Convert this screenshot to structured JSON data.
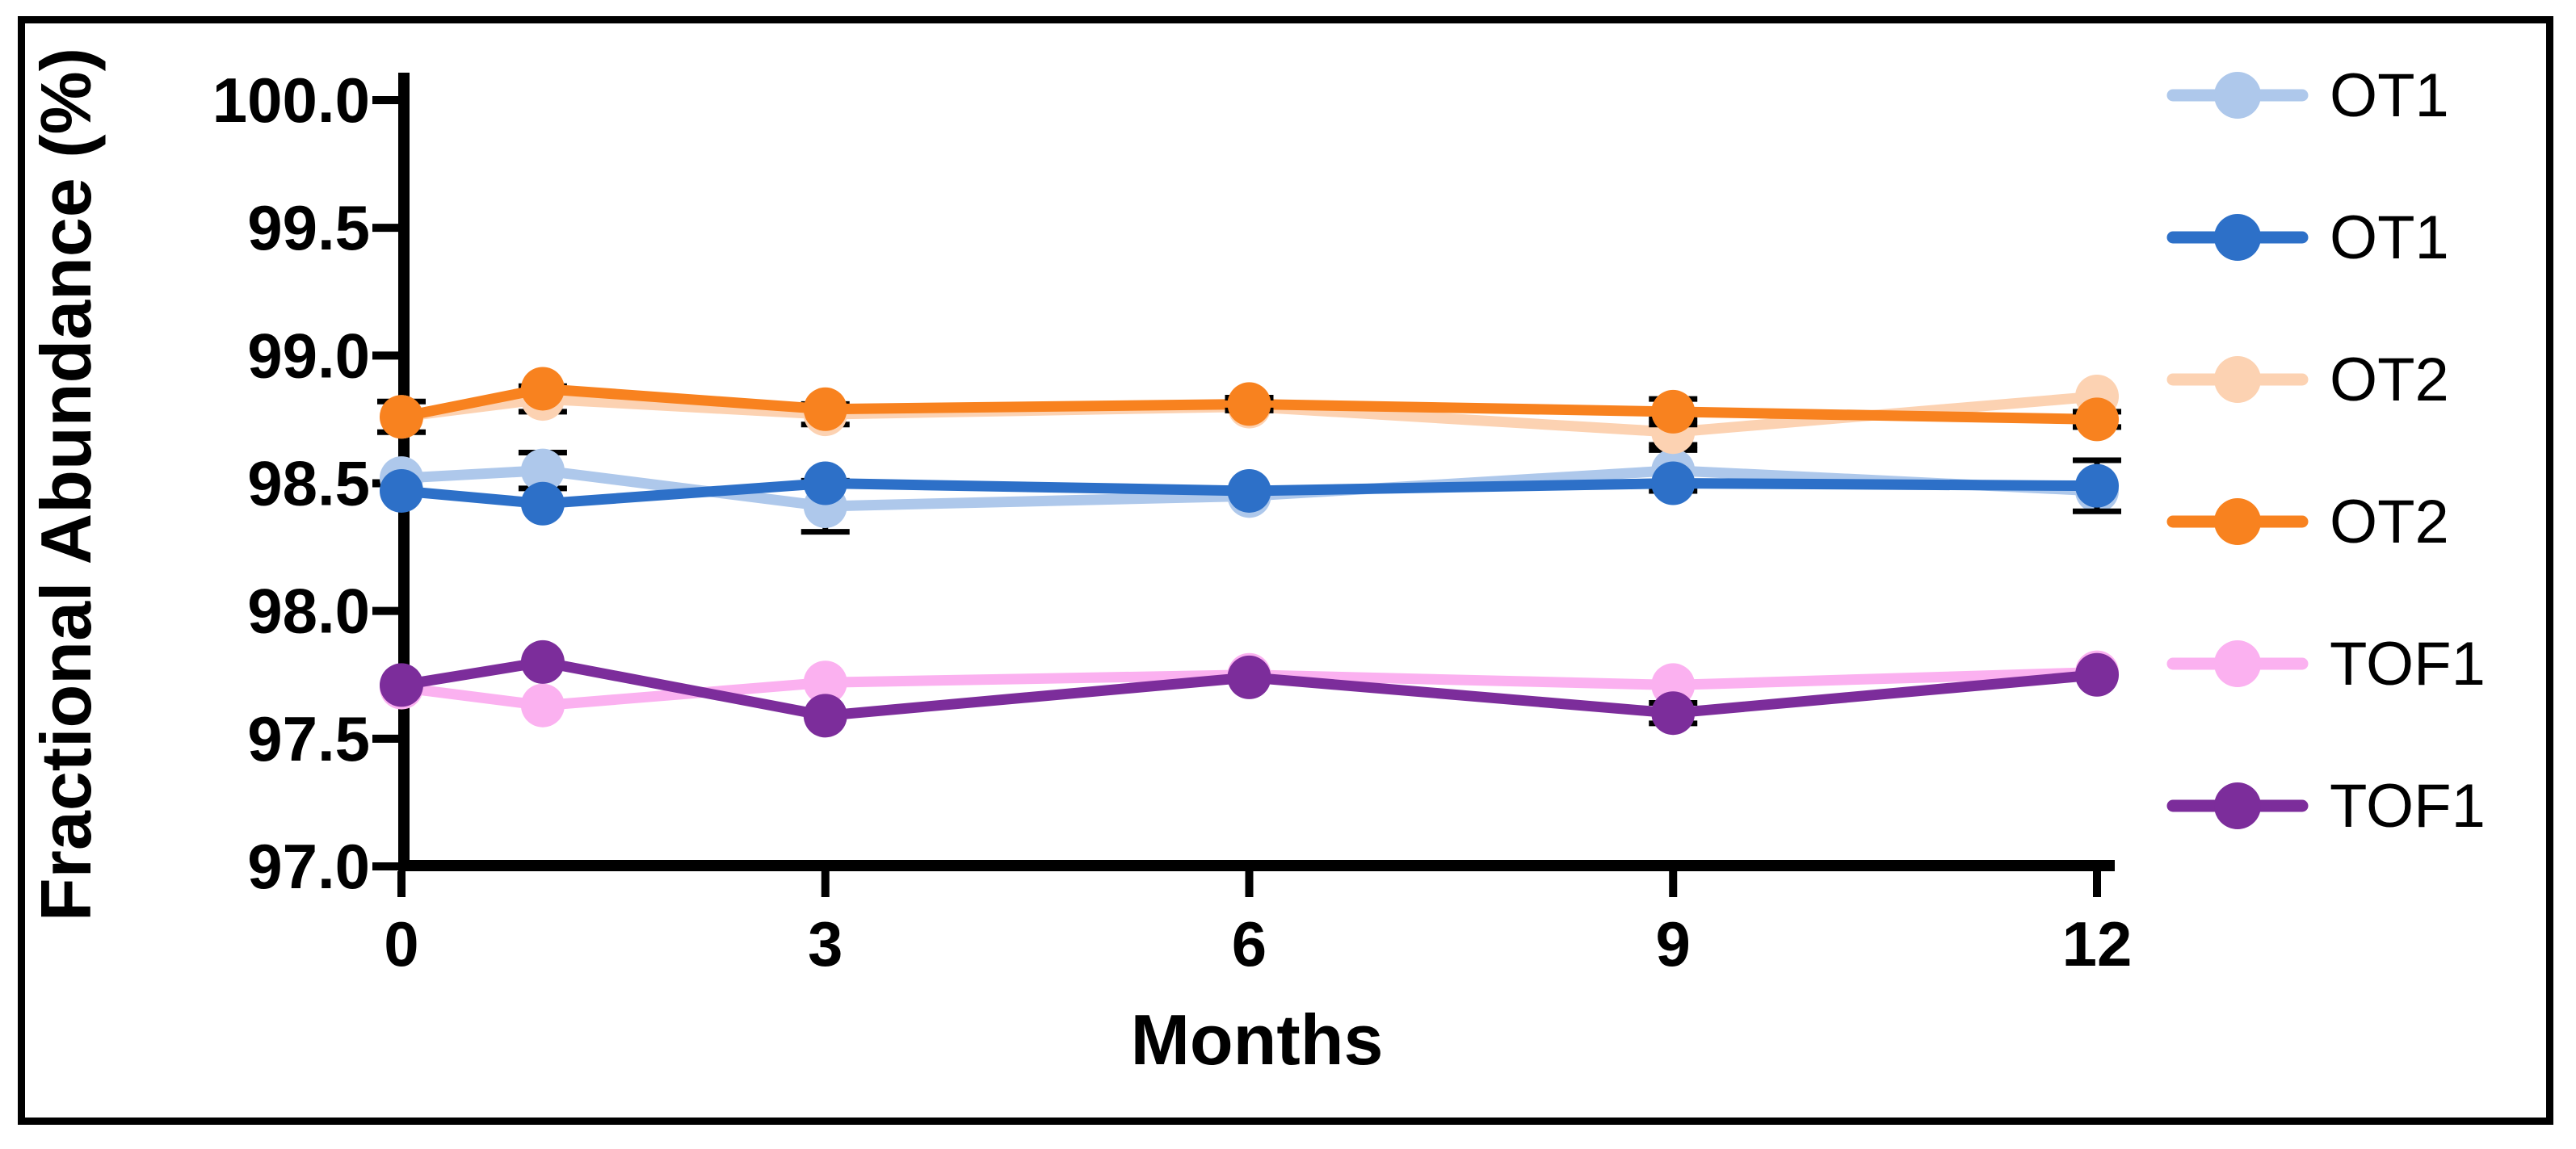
{
  "chart_data": {
    "type": "line",
    "title": "",
    "xlabel": "Months",
    "ylabel": "Fractional Abundance (%)",
    "x": [
      0,
      1,
      3,
      6,
      9,
      12
    ],
    "x_ticks": [
      0,
      3,
      6,
      9,
      12
    ],
    "y_ticks": [
      100.0,
      99.5,
      99.0,
      98.5,
      98.0,
      97.5,
      97.0
    ],
    "xlim": [
      0,
      12
    ],
    "ylim": [
      97.0,
      100.0
    ],
    "grid": false,
    "legend_position": "right",
    "axis_color": "#000000",
    "text_color": "#000000",
    "error_bar_color": "#000000",
    "series": [
      {
        "name": "OT1",
        "shade": "light",
        "color": "#AEC8EB",
        "values": [
          98.52,
          98.55,
          98.41,
          98.45,
          98.55,
          98.47
        ],
        "errors": [
          0,
          0.07,
          0.1,
          0,
          0.08,
          0
        ]
      },
      {
        "name": "OT1",
        "shade": "dark",
        "color": "#2D70C8",
        "values": [
          98.47,
          98.42,
          98.5,
          98.47,
          98.5,
          98.49
        ],
        "errors": [
          0,
          0,
          0,
          0,
          0,
          0.1
        ]
      },
      {
        "name": "OT2",
        "shade": "light",
        "color": "#FCD2B2",
        "values": [
          98.76,
          98.83,
          98.77,
          98.8,
          98.7,
          98.84
        ],
        "errors": [
          0,
          0.05,
          0.04,
          0,
          0.05,
          0
        ]
      },
      {
        "name": "OT2",
        "shade": "dark",
        "color": "#F8821F",
        "values": [
          98.76,
          98.87,
          98.79,
          98.81,
          98.78,
          98.75
        ],
        "errors": [
          0.06,
          0,
          0,
          0.025,
          0.05,
          0.03
        ]
      },
      {
        "name": "TOF1",
        "shade": "light",
        "color": "#FBB1F0",
        "values": [
          97.7,
          97.63,
          97.72,
          97.75,
          97.71,
          97.76
        ],
        "errors": [
          0,
          0,
          0,
          0,
          0,
          0
        ]
      },
      {
        "name": "TOF1",
        "shade": "dark",
        "color": "#7C2D9B",
        "values": [
          97.71,
          97.8,
          97.59,
          97.74,
          97.6,
          97.75
        ],
        "errors": [
          0,
          0,
          0,
          0,
          0.04,
          0
        ]
      }
    ]
  }
}
